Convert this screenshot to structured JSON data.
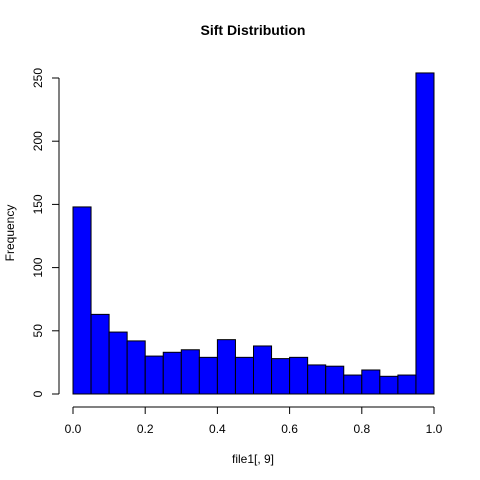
{
  "chart_data": {
    "type": "bar",
    "title": "Sift Distribution",
    "xlabel": "file1[, 9]",
    "ylabel": "Frequency",
    "bin_width": 0.05,
    "bins": [
      [
        0.0,
        0.05
      ],
      [
        0.05,
        0.1
      ],
      [
        0.1,
        0.15
      ],
      [
        0.15,
        0.2
      ],
      [
        0.2,
        0.25
      ],
      [
        0.25,
        0.3
      ],
      [
        0.3,
        0.35
      ],
      [
        0.35,
        0.4
      ],
      [
        0.4,
        0.45
      ],
      [
        0.45,
        0.5
      ],
      [
        0.5,
        0.55
      ],
      [
        0.55,
        0.6
      ],
      [
        0.6,
        0.65
      ],
      [
        0.65,
        0.7
      ],
      [
        0.7,
        0.75
      ],
      [
        0.75,
        0.8
      ],
      [
        0.8,
        0.85
      ],
      [
        0.85,
        0.9
      ],
      [
        0.9,
        0.95
      ],
      [
        0.95,
        1.0
      ]
    ],
    "values": [
      148,
      63,
      49,
      42,
      30,
      33,
      35,
      29,
      43,
      29,
      38,
      28,
      29,
      23,
      22,
      15,
      19,
      14,
      15,
      254
    ],
    "xlim": [
      0,
      1
    ],
    "ylim": [
      0,
      254
    ],
    "xticks": [
      0.0,
      0.2,
      0.4,
      0.6,
      0.8,
      1.0
    ],
    "xtick_labels": [
      "0.0",
      "0.2",
      "0.4",
      "0.6",
      "0.8",
      "1.0"
    ],
    "yticks": [
      0,
      50,
      100,
      150,
      200,
      250
    ],
    "ytick_labels": [
      "0",
      "50",
      "100",
      "150",
      "200",
      "250"
    ],
    "bar_color": "#0000ff",
    "grid": false,
    "legend": "none"
  }
}
